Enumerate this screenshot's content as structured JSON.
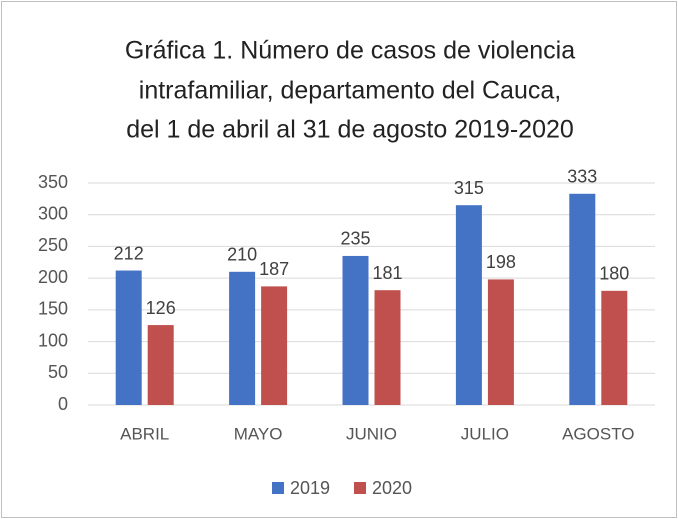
{
  "chart_data": {
    "type": "bar",
    "title": [
      "Gráfica 1.  Número de casos de violencia",
      "intrafamiliar, departamento del Cauca,",
      "del 1 de abril al 31 de agosto 2019-2020"
    ],
    "categories": [
      "ABRIL",
      "MAYO",
      "JUNIO",
      "JULIO",
      "AGOSTO"
    ],
    "series": [
      {
        "name": "2019",
        "color": "#4472c4",
        "values": [
          212,
          210,
          235,
          315,
          333
        ]
      },
      {
        "name": "2020",
        "color": "#c0504d",
        "values": [
          126,
          187,
          181,
          198,
          180
        ]
      }
    ],
    "ylim": [
      0,
      350
    ],
    "yticks": [
      0,
      50,
      100,
      150,
      200,
      250,
      300,
      350
    ],
    "grid": true,
    "legend": "bottom"
  }
}
